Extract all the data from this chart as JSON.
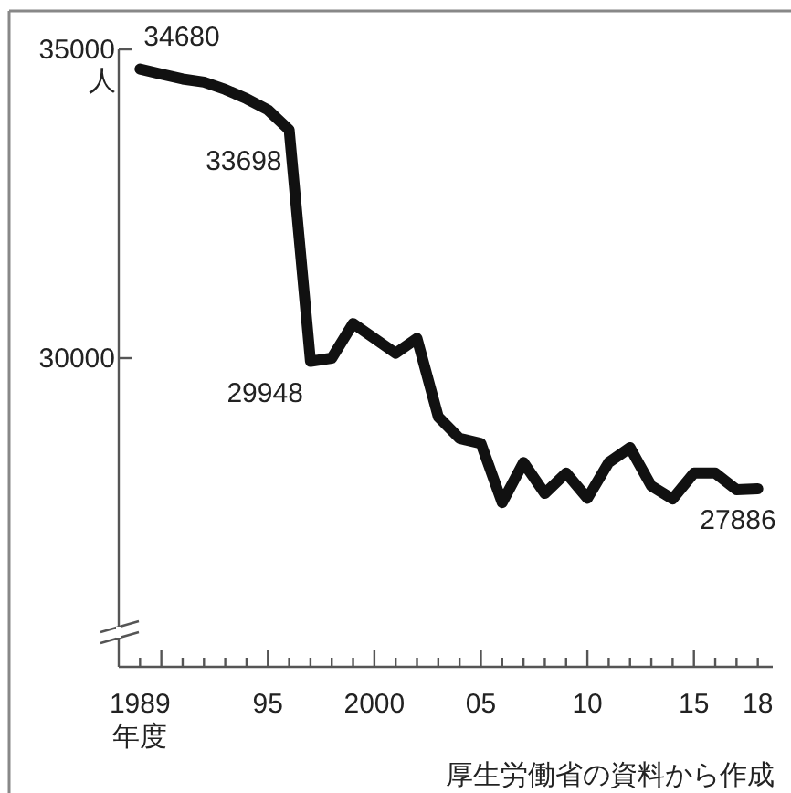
{
  "chart_data": {
    "type": "line",
    "xlabel": "年度",
    "ylabel": "人",
    "x": [
      1989,
      1990,
      1991,
      1992,
      1993,
      1994,
      1995,
      1996,
      1997,
      1998,
      1999,
      2000,
      2001,
      2002,
      2003,
      2004,
      2005,
      2006,
      2007,
      2008,
      2009,
      2010,
      2011,
      2012,
      2013,
      2014,
      2015,
      2016,
      2017,
      2018
    ],
    "series": [
      {
        "color": "#111111",
        "values": [
          34680,
          34600,
          34520,
          34470,
          34350,
          34200,
          34020,
          33698,
          29948,
          30000,
          30560,
          30320,
          30080,
          30320,
          29050,
          28700,
          28620,
          27660,
          28310,
          27810,
          28140,
          27730,
          28310,
          28550,
          27930,
          27720,
          28140,
          28140,
          27870,
          27886
        ],
        "value_labels": [
          "34680",
          null,
          null,
          null,
          null,
          null,
          null,
          "33698",
          "29948",
          null,
          null,
          null,
          null,
          null,
          null,
          null,
          null,
          null,
          null,
          null,
          null,
          null,
          null,
          null,
          null,
          null,
          null,
          null,
          null,
          "27886"
        ]
      }
    ],
    "xlim": [
      1988,
      2018.7
    ],
    "ylim": [
      25000,
      35000
    ],
    "yticks": [
      30000,
      35000
    ],
    "xticks": [
      {
        "value": 1989,
        "label": "1989"
      },
      {
        "value": 1990,
        "label": null
      },
      {
        "value": 1991,
        "label": null
      },
      {
        "value": 1992,
        "label": null
      },
      {
        "value": 1993,
        "label": null
      },
      {
        "value": 1994,
        "label": null
      },
      {
        "value": 1995,
        "label": "95"
      },
      {
        "value": 1996,
        "label": null
      },
      {
        "value": 1997,
        "label": null
      },
      {
        "value": 1998,
        "label": null
      },
      {
        "value": 1999,
        "label": null
      },
      {
        "value": 2000,
        "label": "2000"
      },
      {
        "value": 2001,
        "label": null
      },
      {
        "value": 2002,
        "label": null
      },
      {
        "value": 2003,
        "label": null
      },
      {
        "value": 2004,
        "label": null
      },
      {
        "value": 2005,
        "label": "05"
      },
      {
        "value": 2006,
        "label": null
      },
      {
        "value": 2007,
        "label": null
      },
      {
        "value": 2008,
        "label": null
      },
      {
        "value": 2009,
        "label": null
      },
      {
        "value": 2010,
        "label": "10"
      },
      {
        "value": 2011,
        "label": null
      },
      {
        "value": 2012,
        "label": null
      },
      {
        "value": 2013,
        "label": null
      },
      {
        "value": 2014,
        "label": null
      },
      {
        "value": 2015,
        "label": "15"
      },
      {
        "value": 2016,
        "label": null
      },
      {
        "value": 2017,
        "label": null
      },
      {
        "value": 2018,
        "label": "18"
      }
    ],
    "marker": "none",
    "line_style": "solid",
    "annotations": [
      "厚生労働省の資料から作成"
    ]
  }
}
